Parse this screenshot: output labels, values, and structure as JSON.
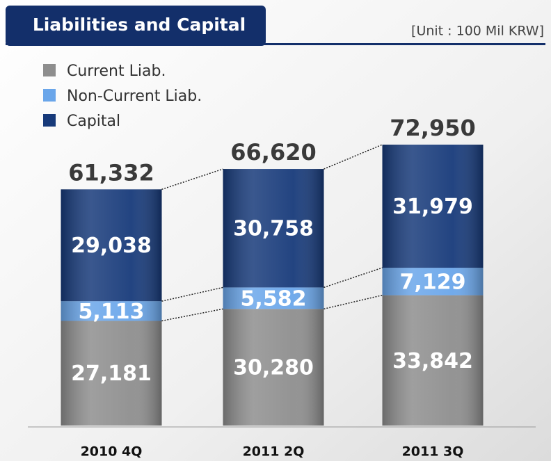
{
  "chart_data": {
    "type": "stacked_bar",
    "title": "Liabilities and Capital",
    "unit": "[Unit : 100 Mil KRW]",
    "categories": [
      "2010 4Q",
      "2011 2Q",
      "2011 3Q"
    ],
    "series": [
      {
        "name": "Current Liab.",
        "color": "#8e8e8e",
        "values": [
          27181,
          30280,
          33842
        ],
        "value_labels": [
          "27,181",
          "30,280",
          "33,842"
        ]
      },
      {
        "name": "Non-Current Liab.",
        "color": "#6aa6ea",
        "values": [
          5113,
          5582,
          7129
        ],
        "value_labels": [
          "5,113",
          "5,582",
          "7,129"
        ]
      },
      {
        "name": "Capital",
        "color": "#173a7a",
        "values": [
          29038,
          30758,
          31979
        ],
        "value_labels": [
          "29,038",
          "30,758",
          "31,979"
        ]
      }
    ],
    "totals": [
      61332,
      66620,
      72950
    ],
    "total_labels": [
      "61,332",
      "66,620",
      "72,950"
    ]
  }
}
